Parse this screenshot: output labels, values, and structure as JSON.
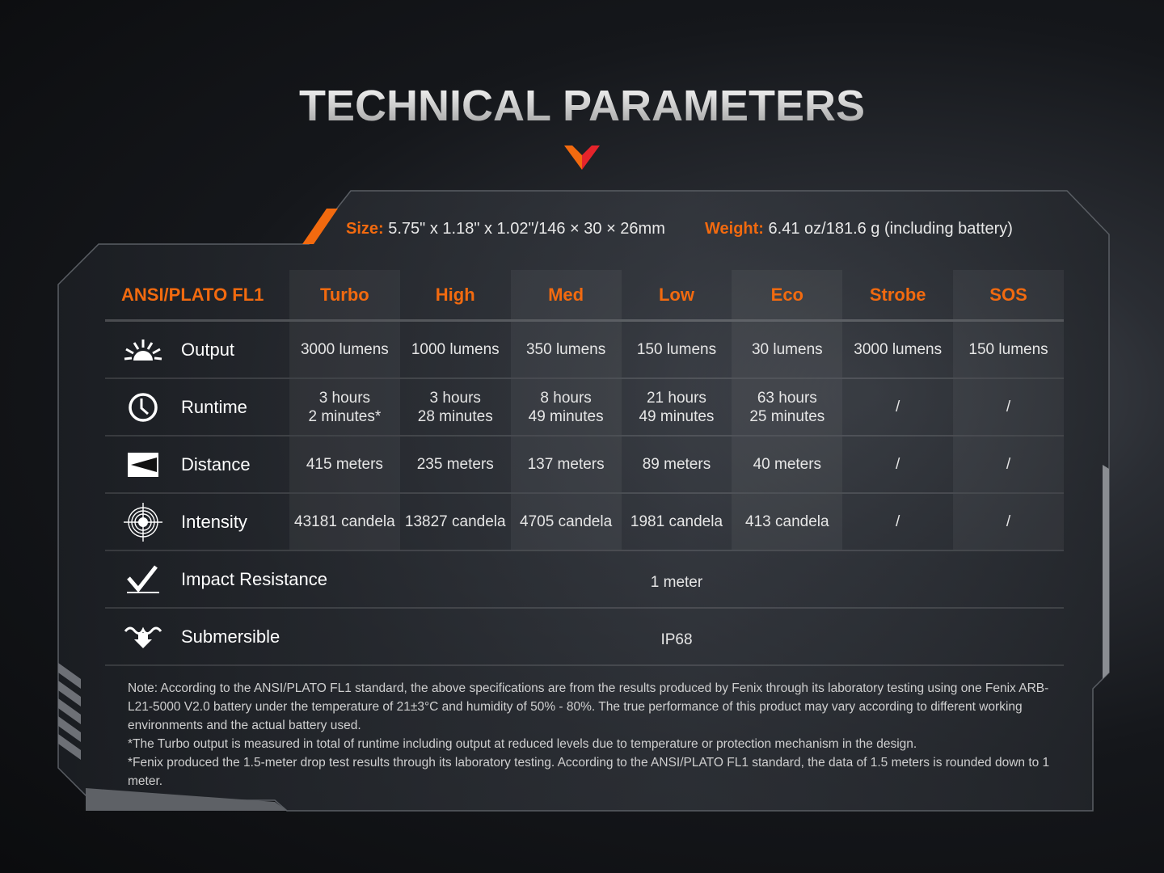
{
  "title": "TECHNICAL PARAMETERS",
  "colors": {
    "accent": "#f26a0f",
    "accent2": "#e5242b"
  },
  "specs": {
    "size_label": "Size:",
    "size_value": "5.75\" x 1.18\" x 1.02\"/146 × 30 × 26mm",
    "weight_label": "Weight:",
    "weight_value": "6.41 oz/181.6 g (including battery)"
  },
  "table": {
    "corner": "ANSI/PLATO FL1",
    "modes": [
      "Turbo",
      "High",
      "Med",
      "Low",
      "Eco",
      "Strobe",
      "SOS"
    ],
    "rows": [
      {
        "icon": "sun-rays-icon",
        "label": "Output",
        "values": [
          "3000 lumens",
          "1000 lumens",
          "350 lumens",
          "150 lumens",
          "30 lumens",
          "3000 lumens",
          "150 lumens"
        ]
      },
      {
        "icon": "clock-icon",
        "label": "Runtime",
        "values": [
          "3 hours\n2 minutes*",
          "3 hours\n28 minutes",
          "8 hours\n49 minutes",
          "21 hours\n49 minutes",
          "63 hours\n25 minutes",
          "/",
          "/"
        ]
      },
      {
        "icon": "distance-beam-icon",
        "label": "Distance",
        "values": [
          "415 meters",
          "235 meters",
          "137 meters",
          "89 meters",
          "40 meters",
          "/",
          "/"
        ]
      },
      {
        "icon": "target-icon",
        "label": "Intensity",
        "values": [
          "43181 candela",
          "13827 candela",
          "4705 candela",
          "1981 candela",
          "413 candela",
          "/",
          "/"
        ]
      }
    ],
    "span_rows": [
      {
        "icon": "impact-check-icon",
        "label": "Impact Resistance",
        "value": "1 meter"
      },
      {
        "icon": "water-submersible-icon",
        "label": "Submersible",
        "value": "IP68"
      }
    ]
  },
  "notes": [
    "Note: According to the ANSI/PLATO FL1 standard, the above specifications are from the results produced by Fenix through its laboratory testing using one Fenix ARB-L21-5000 V2.0 battery under the temperature of 21±3°C and humidity of 50% - 80%. The true performance of this product may vary according to different working environments and the actual battery used.",
    "*The Turbo output is measured in total of runtime including output at reduced levels due to temperature or protection mechanism in the design.",
    "*Fenix produced the 1.5-meter drop test results through its laboratory testing. According to the ANSI/PLATO FL1 standard, the data of 1.5 meters is rounded down to 1 meter."
  ]
}
